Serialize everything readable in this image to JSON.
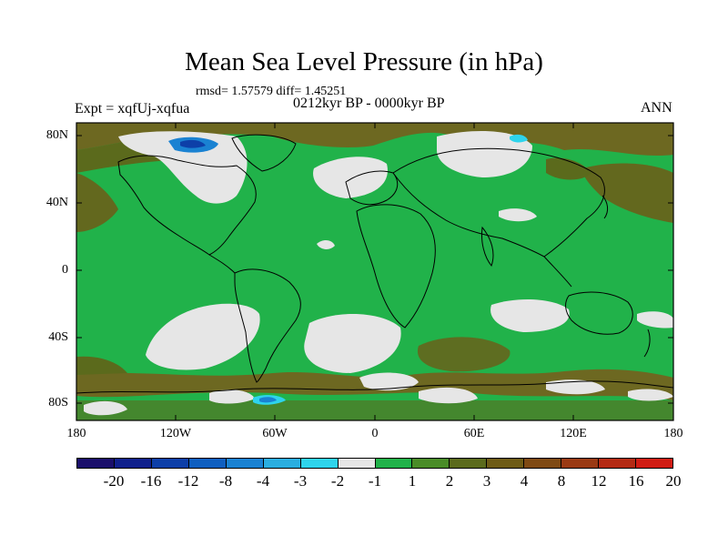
{
  "title": "Mean Sea Level Pressure (in hPa)",
  "stats": "rmsd= 1.57579 diff= 1.45251",
  "experiment": "Expt = xqfUj-xqfua",
  "period": "0212kyr BP - 0000kyr BP",
  "season": "ANN",
  "lat_labels": [
    "80N",
    "40N",
    "0",
    "40S",
    "80S"
  ],
  "lon_labels": [
    "180",
    "120W",
    "60W",
    "0",
    "60E",
    "120E",
    "180"
  ],
  "colorbar": {
    "colors": [
      "#1a0f6b",
      "#10208c",
      "#0d3fa8",
      "#0f5fc0",
      "#1a82d2",
      "#2aaee0",
      "#2ed4ec",
      "#e6e6e6",
      "#21b24a",
      "#4a8c28",
      "#5b6a1c",
      "#6e5b16",
      "#7f4a14",
      "#9a3a14",
      "#b42a14",
      "#d01c14"
    ],
    "labels": [
      "-20",
      "-16",
      "-12",
      "-8",
      "-4",
      "-3",
      "-2",
      "-1",
      "1",
      "2",
      "3",
      "4",
      "8",
      "12",
      "16",
      "20"
    ]
  }
}
